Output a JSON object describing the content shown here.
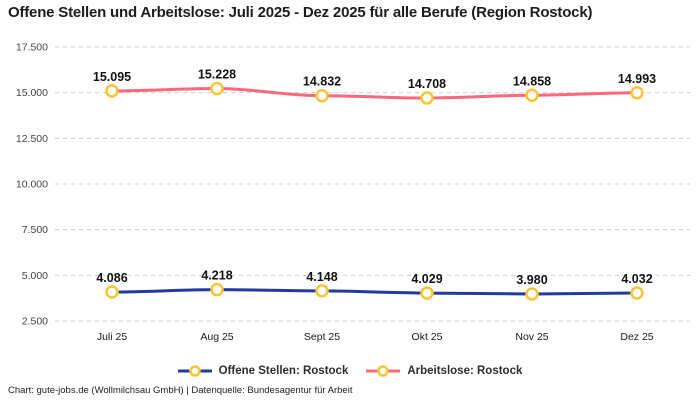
{
  "title": "Offene Stellen und Arbeitslose: Juli 2025 - Dez 2025 für alle Berufe (Region Rostock)",
  "footer": "Chart: gute-jobs.de (Wollmilchsau GmbH) | Datenquelle: Bundesagentur für Arbeit",
  "colors": {
    "background": "#ffffff",
    "grid": "#cccccc",
    "title_text": "#1d1d1d",
    "axis_text": "#444444",
    "x_axis_text": "#1a1a1a",
    "data_label_text": "#111111",
    "legend_text": "#2e2e2e",
    "series_offene_stellen": "#213c9c",
    "series_arbeitslose": "#f9687e",
    "marker_stroke": "#fcc434",
    "marker_fill": "#ffffff"
  },
  "chart_data": {
    "type": "line",
    "title": "Offene Stellen und Arbeitslose: Juli 2025 - Dez 2025 für alle Berufe (Region Rostock)",
    "categories": [
      "Juli 25",
      "Aug 25",
      "Sept 25",
      "Okt 25",
      "Nov 25",
      "Dez 25"
    ],
    "series": [
      {
        "name": "Offene Stellen: Rostock",
        "color": "#213c9c",
        "values": [
          4086,
          4218,
          4148,
          4029,
          3980,
          4032
        ],
        "labels": [
          "4.086",
          "4.218",
          "4.148",
          "4.029",
          "3.980",
          "4.032"
        ]
      },
      {
        "name": "Arbeitslose: Rostock",
        "color": "#f9687e",
        "values": [
          15095,
          15228,
          14832,
          14708,
          14858,
          14993
        ],
        "labels": [
          "15.095",
          "15.228",
          "14.832",
          "14.708",
          "14.858",
          "14.993"
        ]
      }
    ],
    "y_ticks": [
      2500,
      5000,
      7500,
      10000,
      12500,
      15000,
      17500
    ],
    "y_tick_labels": [
      "2.500",
      "5.000",
      "7.500",
      "10.000",
      "12.500",
      "15.000",
      "17.500"
    ],
    "ylim": [
      2500,
      17500
    ],
    "grid": "horizontal-dashed",
    "legend_position": "bottom",
    "marker": {
      "shape": "circle",
      "fill": "#ffffff",
      "stroke": "#fcc434"
    }
  }
}
